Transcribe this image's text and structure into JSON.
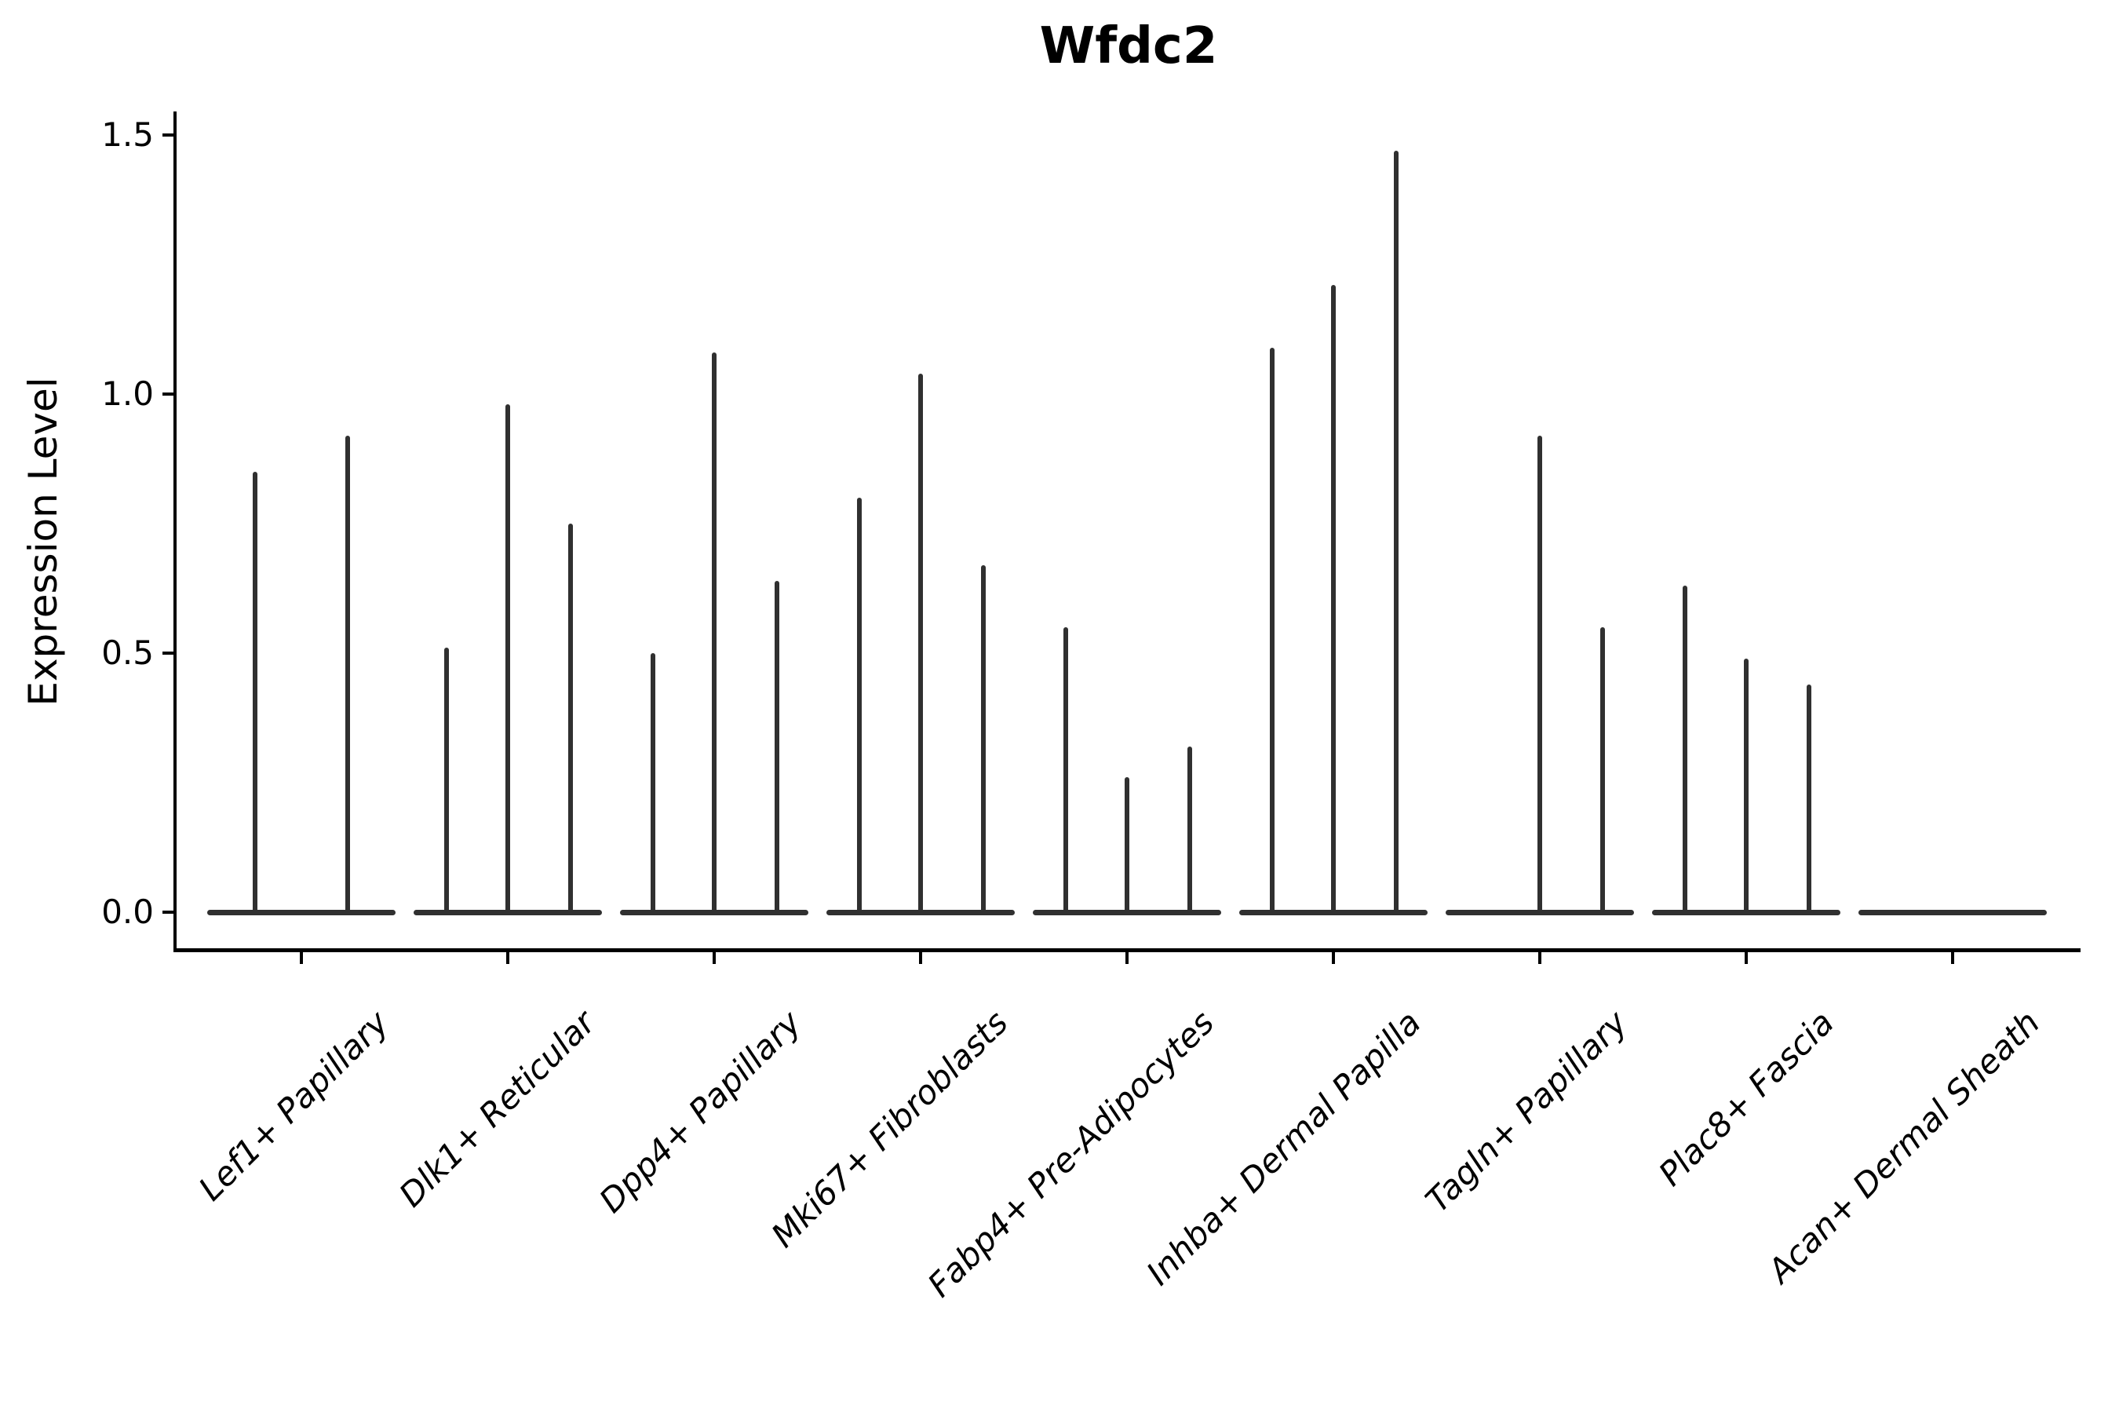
{
  "figure": {
    "background": "#ffffff"
  },
  "chart_data": {
    "type": "violin",
    "title": "Wfdc2",
    "xlabel": "",
    "ylabel": "Expression Level",
    "ylim": [
      0,
      1.5
    ],
    "yticks": [
      0.0,
      0.5,
      1.0,
      1.5
    ],
    "ytick_labels": [
      "0.0",
      "0.5",
      "1.0",
      "1.5"
    ],
    "grid": false,
    "legend": null,
    "colors": {
      "ink": "#000000",
      "violin": "#303030",
      "background": "#ffffff"
    },
    "categories": [
      "Lef1+ Papillary",
      "Dlk1+ Reticular",
      "Dpp4+ Papillary",
      "Mki67+ Fibroblasts",
      "Fabp4+ Pre-Adipocytes",
      "Inhba+ Dermal Papilla",
      "Tagln+ Papillary",
      "Plac8+ Fascia",
      "Acan+ Dermal Sheath"
    ],
    "violins": [
      {
        "category": "Lef1+ Papillary",
        "spikes": [
          {
            "dx": -59,
            "peak": 0.85
          },
          {
            "dx": 59,
            "peak": 0.92
          }
        ]
      },
      {
        "category": "Dlk1+ Reticular",
        "spikes": [
          {
            "dx": -78,
            "peak": 0.51
          },
          {
            "dx": 0,
            "peak": 0.98
          },
          {
            "dx": 80,
            "peak": 0.75
          }
        ]
      },
      {
        "category": "Dpp4+ Papillary",
        "spikes": [
          {
            "dx": -78,
            "peak": 0.5
          },
          {
            "dx": 0,
            "peak": 1.08
          },
          {
            "dx": 80,
            "peak": 0.64
          }
        ]
      },
      {
        "category": "Mki67+ Fibroblasts",
        "spikes": [
          {
            "dx": -78,
            "peak": 0.8
          },
          {
            "dx": 0,
            "peak": 1.04
          },
          {
            "dx": 80,
            "peak": 0.67
          }
        ]
      },
      {
        "category": "Fabp4+ Pre-Adipocytes",
        "spikes": [
          {
            "dx": -78,
            "peak": 0.55
          },
          {
            "dx": 0,
            "peak": 0.26
          },
          {
            "dx": 80,
            "peak": 0.32
          }
        ]
      },
      {
        "category": "Inhba+ Dermal Papilla",
        "spikes": [
          {
            "dx": -78,
            "peak": 1.09
          },
          {
            "dx": 0,
            "peak": 1.21
          },
          {
            "dx": 80,
            "peak": 1.47
          }
        ]
      },
      {
        "category": "Tagln+ Papillary",
        "spikes": [
          {
            "dx": 0,
            "peak": 0.92
          },
          {
            "dx": 80,
            "peak": 0.55
          }
        ]
      },
      {
        "category": "Plac8+ Fascia",
        "spikes": [
          {
            "dx": -78,
            "peak": 0.63
          },
          {
            "dx": 0,
            "peak": 0.49
          },
          {
            "dx": 80,
            "peak": 0.44
          }
        ]
      },
      {
        "category": "Acan+ Dermal Sheath",
        "spikes": []
      }
    ]
  }
}
